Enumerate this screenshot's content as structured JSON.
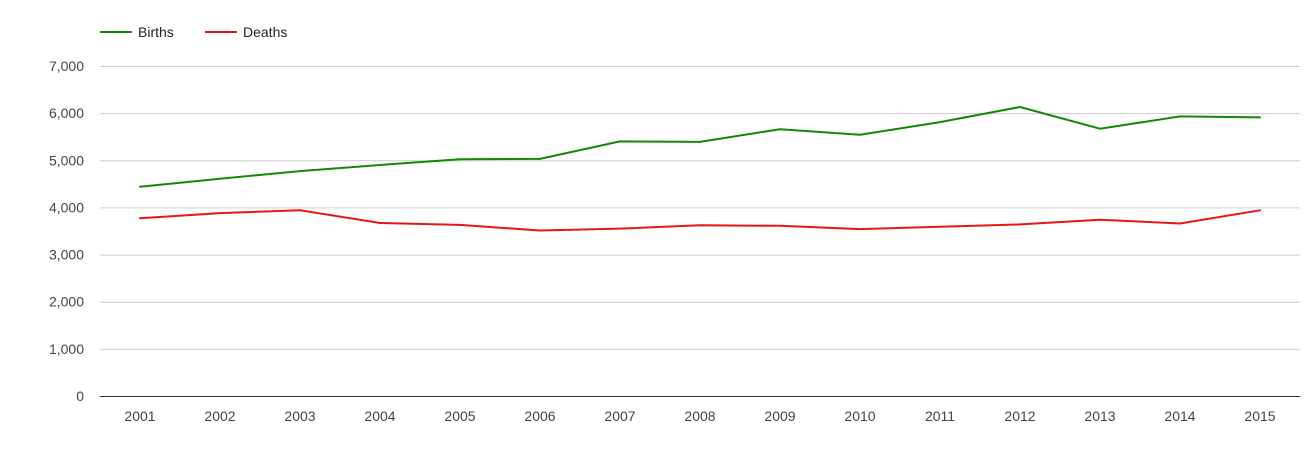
{
  "chart_data": {
    "type": "line",
    "x": [
      "2001",
      "2002",
      "2003",
      "2004",
      "2005",
      "2006",
      "2007",
      "2008",
      "2009",
      "2010",
      "2011",
      "2012",
      "2013",
      "2014",
      "2015"
    ],
    "series": [
      {
        "name": "Births",
        "color": "#108a00",
        "values": [
          4440,
          4610,
          4770,
          4900,
          5020,
          5030,
          5400,
          5390,
          5660,
          5540,
          5810,
          6130,
          5670,
          5930,
          5910
        ]
      },
      {
        "name": "Deaths",
        "color": "#e61616",
        "values": [
          3770,
          3880,
          3940,
          3670,
          3630,
          3510,
          3550,
          3620,
          3610,
          3540,
          3590,
          3640,
          3740,
          3660,
          3940
        ]
      }
    ],
    "ylim": [
      0,
      7000
    ],
    "yticks": [
      0,
      1000,
      2000,
      3000,
      4000,
      5000,
      6000,
      7000
    ],
    "ytick_labels": [
      "0",
      "1,000",
      "2,000",
      "3,000",
      "4,000",
      "5,000",
      "6,000",
      "7,000"
    ],
    "grid": true,
    "legend_position": "top-left"
  }
}
